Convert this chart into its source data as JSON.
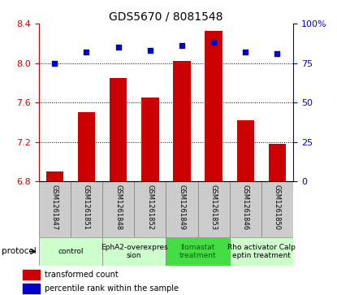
{
  "title": "GDS5670 / 8081548",
  "samples": [
    "GSM1261847",
    "GSM1261851",
    "GSM1261848",
    "GSM1261852",
    "GSM1261849",
    "GSM1261853",
    "GSM1261846",
    "GSM1261850"
  ],
  "bar_values": [
    6.9,
    7.5,
    7.85,
    7.65,
    8.02,
    8.33,
    7.42,
    7.18
  ],
  "dot_values": [
    75,
    82,
    85,
    83,
    86,
    88,
    82,
    81
  ],
  "ymin": 6.8,
  "ymax": 8.4,
  "yticks": [
    6.8,
    7.2,
    7.6,
    8.0,
    8.4
  ],
  "y2min": 0,
  "y2max": 100,
  "y2ticks": [
    0,
    25,
    50,
    75,
    100
  ],
  "bar_color": "#cc0000",
  "dot_color": "#0000cc",
  "bar_bottom": 6.8,
  "protocols": [
    {
      "label": "control",
      "indices": [
        0,
        1
      ],
      "color": "#ccffcc"
    },
    {
      "label": "EphA2-overexpres\nsion",
      "indices": [
        2,
        3
      ],
      "color": "#ccffcc"
    },
    {
      "label": "Ilomastat\ntreatment",
      "indices": [
        4,
        5
      ],
      "color": "#44dd44"
    },
    {
      "label": "Rho activator Calp\neptin treatment",
      "indices": [
        6,
        7
      ],
      "color": "#ccffcc"
    }
  ],
  "ylabel_left_color": "#cc0000",
  "ylabel_right_color": "#0000cc",
  "protocol_label": "protocol",
  "legend_bar": "transformed count",
  "legend_dot": "percentile rank within the sample",
  "sample_bg": "#cccccc",
  "title_fontsize": 10
}
